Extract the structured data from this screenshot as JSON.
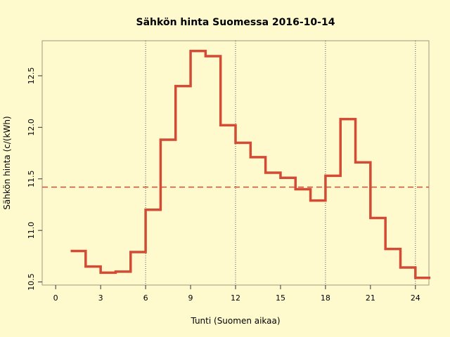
{
  "chart_data": {
    "type": "line",
    "step": true,
    "title": "Sähkön hinta Suomessa 2016-10-14",
    "xlabel": "Tunti (Suomen aikaa)",
    "ylabel": "Sähkön hinta (c/(kWh)",
    "xlim": [
      -0.9,
      24.9
    ],
    "ylim": [
      10.47,
      12.84
    ],
    "xticks": [
      0,
      3,
      6,
      9,
      12,
      15,
      18,
      21,
      24
    ],
    "yticks": [
      10.5,
      11.0,
      11.5,
      12.0,
      12.5
    ],
    "ytick_labels": [
      "10.5",
      "11.0",
      "11.5",
      "12.0",
      "12.5"
    ],
    "vlines": [
      6,
      12,
      18,
      24
    ],
    "mean_line": 11.42,
    "x": [
      1,
      2,
      3,
      4,
      5,
      6,
      7,
      8,
      9,
      10,
      11,
      12,
      13,
      14,
      15,
      16,
      17,
      18,
      19,
      20,
      21,
      22,
      23,
      24,
      25
    ],
    "values": [
      10.8,
      10.65,
      10.59,
      10.6,
      10.79,
      11.2,
      11.88,
      12.4,
      12.74,
      12.69,
      12.02,
      11.85,
      11.71,
      11.56,
      11.51,
      11.4,
      11.29,
      11.53,
      12.08,
      11.66,
      11.12,
      10.82,
      10.64,
      10.54,
      10.54
    ],
    "colors": {
      "line": "#d24b35",
      "background": "#fffacd",
      "mean": "#d24b35"
    }
  }
}
